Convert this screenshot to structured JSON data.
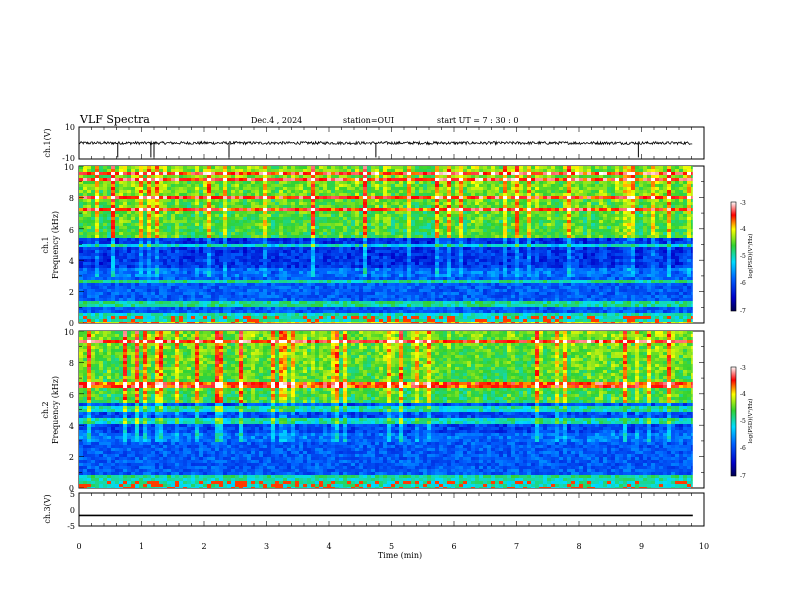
{
  "header": {
    "title": "VLF Spectra",
    "date": "Dec.4 , 2024",
    "station": "station=OUI",
    "start": "start UT = 7 : 30 : 0"
  },
  "chart_data": [
    {
      "type": "line",
      "name": "ch1-waveform",
      "ylabel": "ch.1(V)",
      "yticks": [
        "10",
        "-10"
      ],
      "ylim": [
        -10,
        10
      ],
      "x_range": [
        0,
        10
      ],
      "baseline": 0,
      "typical_amplitude": 0.9,
      "spike_times_min": [
        0.62,
        1.15,
        1.2,
        2.4,
        4.75,
        8.95
      ]
    },
    {
      "type": "heatmap",
      "name": "ch1-spectrogram",
      "ylabel": "Frequency (kHz)",
      "side_label": "ch.1",
      "yticks": [
        "0",
        "2",
        "4",
        "6",
        "8",
        "10"
      ],
      "ylim": [
        0,
        10
      ],
      "x_range": [
        0,
        9.82
      ],
      "colorbar": {
        "label": "log(PSD)(V²/Hz)",
        "ticks": [
          "-3",
          "-4",
          "-5",
          "-6",
          "-7"
        ],
        "range": [
          -7,
          -3
        ]
      },
      "description_bands_khz": {
        "quiet": [
          3.5,
          5.5
        ],
        "active": [
          5.5,
          10
        ]
      }
    },
    {
      "type": "heatmap",
      "name": "ch2-spectrogram",
      "ylabel": "Frequency (kHz)",
      "side_label": "ch.2",
      "yticks": [
        "0",
        "2",
        "4",
        "6",
        "8",
        "10"
      ],
      "ylim": [
        0,
        10
      ],
      "x_range": [
        0,
        9.82
      ],
      "colorbar": {
        "label": "log(PSD)(V²/Hz)",
        "ticks": [
          "-3",
          "-4",
          "-5",
          "-6",
          "-7"
        ],
        "range": [
          -7,
          -3
        ]
      }
    },
    {
      "type": "line",
      "name": "ch3-waveform",
      "ylabel": "ch.3(V)",
      "yticks": [
        "5",
        "0",
        "-5"
      ],
      "ylim": [
        -5,
        5
      ],
      "x_range": [
        0,
        9.82
      ],
      "values_constant": -1.8
    }
  ],
  "xaxis": {
    "label": "Time (min)",
    "ticks": [
      "0",
      "1",
      "2",
      "3",
      "4",
      "5",
      "6",
      "7",
      "8",
      "9",
      "10"
    ],
    "range": [
      0,
      10
    ]
  },
  "colors": {
    "spectrum_low": "#00007a",
    "spectrum_mid": "#00c8ff",
    "spectrum_green": "#3cd23c",
    "spectrum_high": "#ff0000",
    "waveform": "#000000"
  }
}
